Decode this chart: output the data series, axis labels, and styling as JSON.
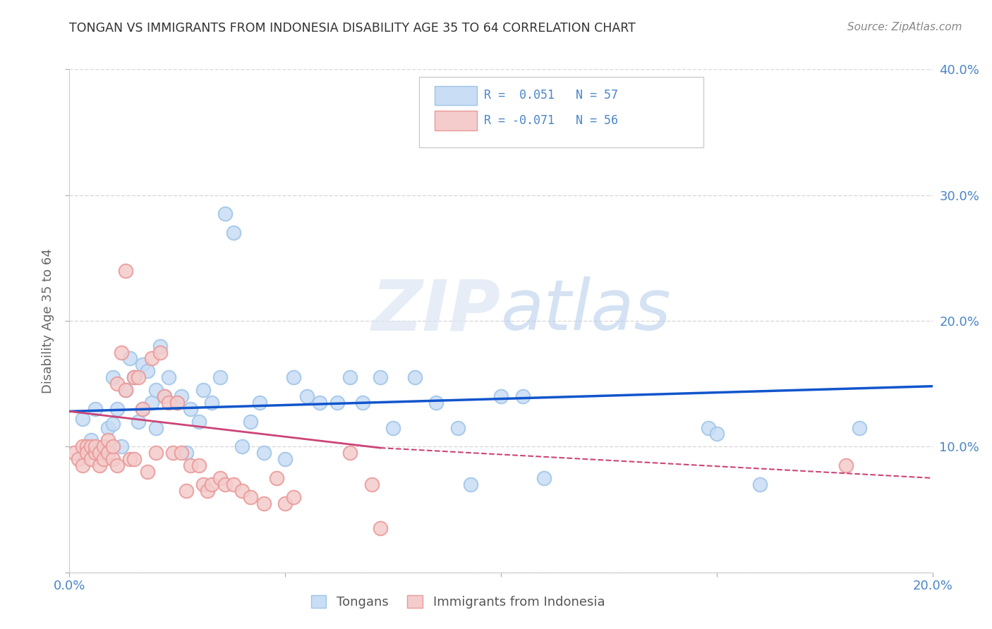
{
  "title": "TONGAN VS IMMIGRANTS FROM INDONESIA DISABILITY AGE 35 TO 64 CORRELATION CHART",
  "source": "Source: ZipAtlas.com",
  "ylabel": "Disability Age 35 to 64",
  "xlim": [
    0.0,
    0.2
  ],
  "ylim": [
    0.0,
    0.4
  ],
  "legend_r1": "R =  0.051   N = 57",
  "legend_r2": "R = -0.071   N = 56",
  "watermark": "ZIPatlas",
  "blue_color": "#9fc5e8",
  "pink_color": "#ea9999",
  "blue_fill": "#c9ddf5",
  "pink_fill": "#f4cccc",
  "blue_line_color": "#1155cc",
  "pink_line_color": "#cc4477",
  "blue_scatter": [
    [
      0.003,
      0.122
    ],
    [
      0.005,
      0.105
    ],
    [
      0.006,
      0.13
    ],
    [
      0.007,
      0.095
    ],
    [
      0.008,
      0.1
    ],
    [
      0.009,
      0.115
    ],
    [
      0.01,
      0.118
    ],
    [
      0.01,
      0.155
    ],
    [
      0.011,
      0.13
    ],
    [
      0.012,
      0.1
    ],
    [
      0.013,
      0.145
    ],
    [
      0.014,
      0.17
    ],
    [
      0.015,
      0.155
    ],
    [
      0.016,
      0.12
    ],
    [
      0.017,
      0.13
    ],
    [
      0.017,
      0.165
    ],
    [
      0.018,
      0.16
    ],
    [
      0.019,
      0.135
    ],
    [
      0.02,
      0.115
    ],
    [
      0.02,
      0.145
    ],
    [
      0.021,
      0.18
    ],
    [
      0.022,
      0.14
    ],
    [
      0.023,
      0.155
    ],
    [
      0.025,
      0.135
    ],
    [
      0.026,
      0.14
    ],
    [
      0.027,
      0.095
    ],
    [
      0.028,
      0.13
    ],
    [
      0.03,
      0.12
    ],
    [
      0.031,
      0.145
    ],
    [
      0.033,
      0.135
    ],
    [
      0.035,
      0.155
    ],
    [
      0.036,
      0.285
    ],
    [
      0.038,
      0.27
    ],
    [
      0.04,
      0.1
    ],
    [
      0.042,
      0.12
    ],
    [
      0.044,
      0.135
    ],
    [
      0.045,
      0.095
    ],
    [
      0.05,
      0.09
    ],
    [
      0.052,
      0.155
    ],
    [
      0.055,
      0.14
    ],
    [
      0.058,
      0.135
    ],
    [
      0.062,
      0.135
    ],
    [
      0.065,
      0.155
    ],
    [
      0.068,
      0.135
    ],
    [
      0.072,
      0.155
    ],
    [
      0.075,
      0.115
    ],
    [
      0.08,
      0.155
    ],
    [
      0.085,
      0.135
    ],
    [
      0.09,
      0.115
    ],
    [
      0.093,
      0.07
    ],
    [
      0.1,
      0.14
    ],
    [
      0.105,
      0.14
    ],
    [
      0.11,
      0.075
    ],
    [
      0.148,
      0.115
    ],
    [
      0.15,
      0.11
    ],
    [
      0.16,
      0.07
    ],
    [
      0.183,
      0.115
    ]
  ],
  "pink_scatter": [
    [
      0.001,
      0.095
    ],
    [
      0.002,
      0.09
    ],
    [
      0.003,
      0.085
    ],
    [
      0.003,
      0.1
    ],
    [
      0.004,
      0.1
    ],
    [
      0.004,
      0.095
    ],
    [
      0.005,
      0.09
    ],
    [
      0.005,
      0.1
    ],
    [
      0.006,
      0.095
    ],
    [
      0.006,
      0.1
    ],
    [
      0.007,
      0.085
    ],
    [
      0.007,
      0.095
    ],
    [
      0.008,
      0.09
    ],
    [
      0.008,
      0.1
    ],
    [
      0.009,
      0.105
    ],
    [
      0.009,
      0.095
    ],
    [
      0.01,
      0.09
    ],
    [
      0.01,
      0.1
    ],
    [
      0.011,
      0.085
    ],
    [
      0.011,
      0.15
    ],
    [
      0.012,
      0.175
    ],
    [
      0.013,
      0.145
    ],
    [
      0.013,
      0.24
    ],
    [
      0.014,
      0.09
    ],
    [
      0.015,
      0.09
    ],
    [
      0.015,
      0.155
    ],
    [
      0.016,
      0.155
    ],
    [
      0.017,
      0.13
    ],
    [
      0.018,
      0.08
    ],
    [
      0.019,
      0.17
    ],
    [
      0.02,
      0.095
    ],
    [
      0.021,
      0.175
    ],
    [
      0.022,
      0.14
    ],
    [
      0.023,
      0.135
    ],
    [
      0.024,
      0.095
    ],
    [
      0.025,
      0.135
    ],
    [
      0.026,
      0.095
    ],
    [
      0.027,
      0.065
    ],
    [
      0.028,
      0.085
    ],
    [
      0.03,
      0.085
    ],
    [
      0.031,
      0.07
    ],
    [
      0.032,
      0.065
    ],
    [
      0.033,
      0.07
    ],
    [
      0.035,
      0.075
    ],
    [
      0.036,
      0.07
    ],
    [
      0.038,
      0.07
    ],
    [
      0.04,
      0.065
    ],
    [
      0.042,
      0.06
    ],
    [
      0.045,
      0.055
    ],
    [
      0.048,
      0.075
    ],
    [
      0.05,
      0.055
    ],
    [
      0.052,
      0.06
    ],
    [
      0.065,
      0.095
    ],
    [
      0.07,
      0.07
    ],
    [
      0.072,
      0.035
    ],
    [
      0.18,
      0.085
    ]
  ],
  "blue_trendline": [
    [
      0.0,
      0.128
    ],
    [
      0.2,
      0.148
    ]
  ],
  "pink_trendline_solid": [
    [
      0.0,
      0.128
    ],
    [
      0.072,
      0.099
    ]
  ],
  "pink_trendline_dashed": [
    [
      0.072,
      0.099
    ],
    [
      0.2,
      0.075
    ]
  ],
  "background_color": "#ffffff",
  "grid_color": "#d9d9d9",
  "title_color": "#333333",
  "axis_label_color": "#666666",
  "right_axis_color": "#4a86c8",
  "bottom_label_color": "#4a86c8",
  "legend_box_color": "#f3f3f3"
}
